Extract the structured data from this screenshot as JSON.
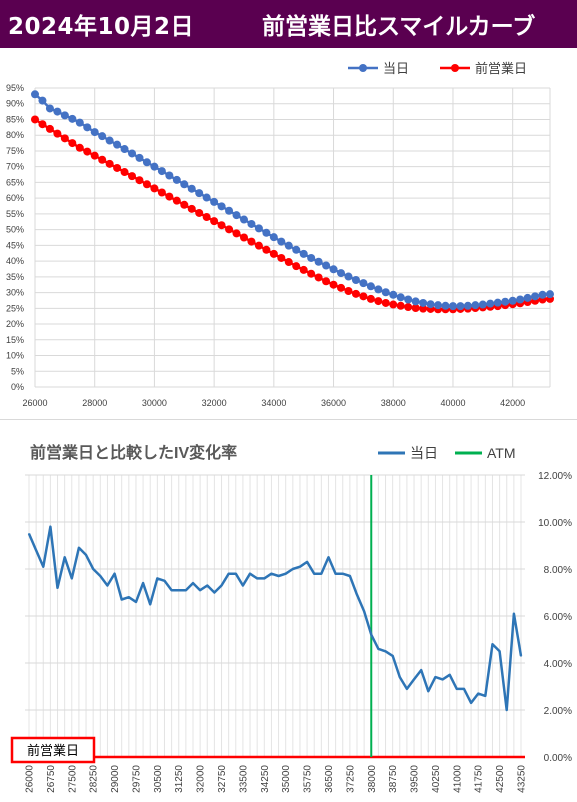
{
  "header": {
    "date": "2024年10月2日",
    "title": "前営業日比スマイルカーブ"
  },
  "colors": {
    "header_bg": "#5a0050",
    "today": "#4472c4",
    "prev": "#ff0000",
    "iv_change": "#2e75b6",
    "atm": "#00b050",
    "zero_line": "#ff0000"
  },
  "chart_data": [
    {
      "type": "line",
      "legend_position": "top-right",
      "grid": true,
      "xlim": [
        26000,
        43250
      ],
      "ylim": [
        0,
        95
      ],
      "xticks": [
        "26000",
        "28000",
        "30000",
        "32000",
        "34000",
        "36000",
        "38000",
        "40000",
        "42000"
      ],
      "yticks": [
        "0%",
        "5%",
        "10%",
        "15%",
        "20%",
        "25%",
        "30%",
        "35%",
        "40%",
        "45%",
        "50%",
        "55%",
        "60%",
        "65%",
        "70%",
        "75%",
        "80%",
        "85%",
        "90%",
        "95%"
      ],
      "x": [
        26000,
        26250,
        26500,
        26750,
        27000,
        27250,
        27500,
        27750,
        28000,
        28250,
        28500,
        28750,
        29000,
        29250,
        29500,
        29750,
        30000,
        30250,
        30500,
        30750,
        31000,
        31250,
        31500,
        31750,
        32000,
        32250,
        32500,
        32750,
        33000,
        33250,
        33500,
        33750,
        34000,
        34250,
        34500,
        34750,
        35000,
        35250,
        35500,
        35750,
        36000,
        36250,
        36500,
        36750,
        37000,
        37250,
        37500,
        37750,
        38000,
        38250,
        38500,
        38750,
        39000,
        39250,
        39500,
        39750,
        40000,
        40250,
        40500,
        40750,
        41000,
        41250,
        41500,
        41750,
        42000,
        42250,
        42500,
        42750,
        43000,
        43250
      ],
      "series": [
        {
          "name": "当日",
          "color": "#4472c4",
          "values": [
            93.0,
            91.0,
            88.5,
            87.5,
            86.3,
            85.2,
            84.0,
            82.5,
            81.0,
            79.7,
            78.3,
            77.0,
            75.6,
            74.2,
            72.8,
            71.4,
            70.0,
            68.6,
            67.2,
            65.8,
            64.4,
            63.0,
            61.6,
            60.2,
            58.8,
            57.4,
            56.0,
            54.6,
            53.2,
            51.8,
            50.4,
            49.0,
            47.6,
            46.2,
            44.9,
            43.6,
            42.3,
            41.0,
            39.8,
            38.6,
            37.4,
            36.2,
            35.1,
            34.0,
            33.0,
            32.0,
            31.0,
            30.1,
            29.3,
            28.5,
            27.8,
            27.2,
            26.7,
            26.3,
            26.0,
            25.8,
            25.7,
            25.7,
            25.8,
            26.0,
            26.2,
            26.5,
            26.8,
            27.1,
            27.4,
            27.8,
            28.3,
            28.8,
            29.3,
            29.5
          ]
        },
        {
          "name": "前営業日",
          "color": "#ff0000",
          "values": [
            85.0,
            83.5,
            82.0,
            80.5,
            79.0,
            77.5,
            76.0,
            74.8,
            73.5,
            72.2,
            70.9,
            69.6,
            68.3,
            67.0,
            65.7,
            64.4,
            63.1,
            61.8,
            60.5,
            59.2,
            57.9,
            56.6,
            55.3,
            54.0,
            52.7,
            51.4,
            50.1,
            48.8,
            47.5,
            46.2,
            44.9,
            43.6,
            42.3,
            41.0,
            39.7,
            38.4,
            37.2,
            36.0,
            34.8,
            33.6,
            32.5,
            31.5,
            30.5,
            29.6,
            28.8,
            28.0,
            27.3,
            26.7,
            26.2,
            25.8,
            25.4,
            25.1,
            24.9,
            24.8,
            24.7,
            24.7,
            24.7,
            24.8,
            24.9,
            25.1,
            25.3,
            25.5,
            25.7,
            26.0,
            26.3,
            26.6,
            27.0,
            27.4,
            27.8,
            28.0
          ]
        }
      ]
    },
    {
      "type": "line",
      "title": "前営業日と比較したIV変化率",
      "legend_position": "top-right",
      "grid": true,
      "ylim": [
        0,
        12
      ],
      "yticks": [
        "0.00%",
        "2.00%",
        "4.00%",
        "6.00%",
        "8.00%",
        "10.00%",
        "12.00%"
      ],
      "categories": [
        "26000",
        "26250",
        "26500",
        "26750",
        "27000",
        "27250",
        "27500",
        "27750",
        "28000",
        "28250",
        "28500",
        "28750",
        "29000",
        "29250",
        "29500",
        "29750",
        "30000",
        "30250",
        "30500",
        "30750",
        "31000",
        "31250",
        "31500",
        "31750",
        "32000",
        "32250",
        "32500",
        "32750",
        "33000",
        "33250",
        "33500",
        "33750",
        "34000",
        "34250",
        "34500",
        "34750",
        "35000",
        "35250",
        "35500",
        "35750",
        "36000",
        "36250",
        "36500",
        "36750",
        "37000",
        "37250",
        "37500",
        "37750",
        "38000",
        "38250",
        "38500",
        "38750",
        "39000",
        "39250",
        "39500",
        "39750",
        "40000",
        "40250",
        "40500",
        "40750",
        "41000",
        "41250",
        "41500",
        "41750",
        "42000",
        "42250",
        "42500",
        "42750",
        "43000",
        "43250"
      ],
      "tick_labels": [
        "26000",
        "26750",
        "27500",
        "28250",
        "29000",
        "29750",
        "30500",
        "31250",
        "32000",
        "32750",
        "33500",
        "34250",
        "35000",
        "35750",
        "36500",
        "37250",
        "38000",
        "38750",
        "39500",
        "40250",
        "41000",
        "41750",
        "42500",
        "43250"
      ],
      "atm_strike": "38000",
      "series": [
        {
          "name": "当日",
          "color": "#2e75b6",
          "values": [
            9.5,
            8.8,
            8.1,
            9.8,
            7.2,
            8.5,
            7.6,
            8.9,
            8.6,
            8.0,
            7.7,
            7.3,
            7.8,
            6.7,
            6.8,
            6.6,
            7.4,
            6.5,
            7.6,
            7.5,
            7.1,
            7.1,
            7.1,
            7.4,
            7.1,
            7.3,
            7.0,
            7.3,
            7.8,
            7.8,
            7.3,
            7.8,
            7.6,
            7.6,
            7.8,
            7.7,
            7.8,
            8.0,
            8.1,
            8.3,
            7.8,
            7.8,
            8.5,
            7.8,
            7.8,
            7.7,
            6.9,
            6.2,
            5.2,
            4.6,
            4.5,
            4.3,
            3.4,
            2.9,
            3.3,
            3.7,
            2.8,
            3.4,
            3.3,
            3.5,
            2.9,
            2.9,
            2.3,
            2.7,
            2.6,
            4.8,
            4.5,
            2.0,
            6.1,
            4.3
          ]
        }
      ],
      "baseline_label": "前営業日"
    }
  ]
}
